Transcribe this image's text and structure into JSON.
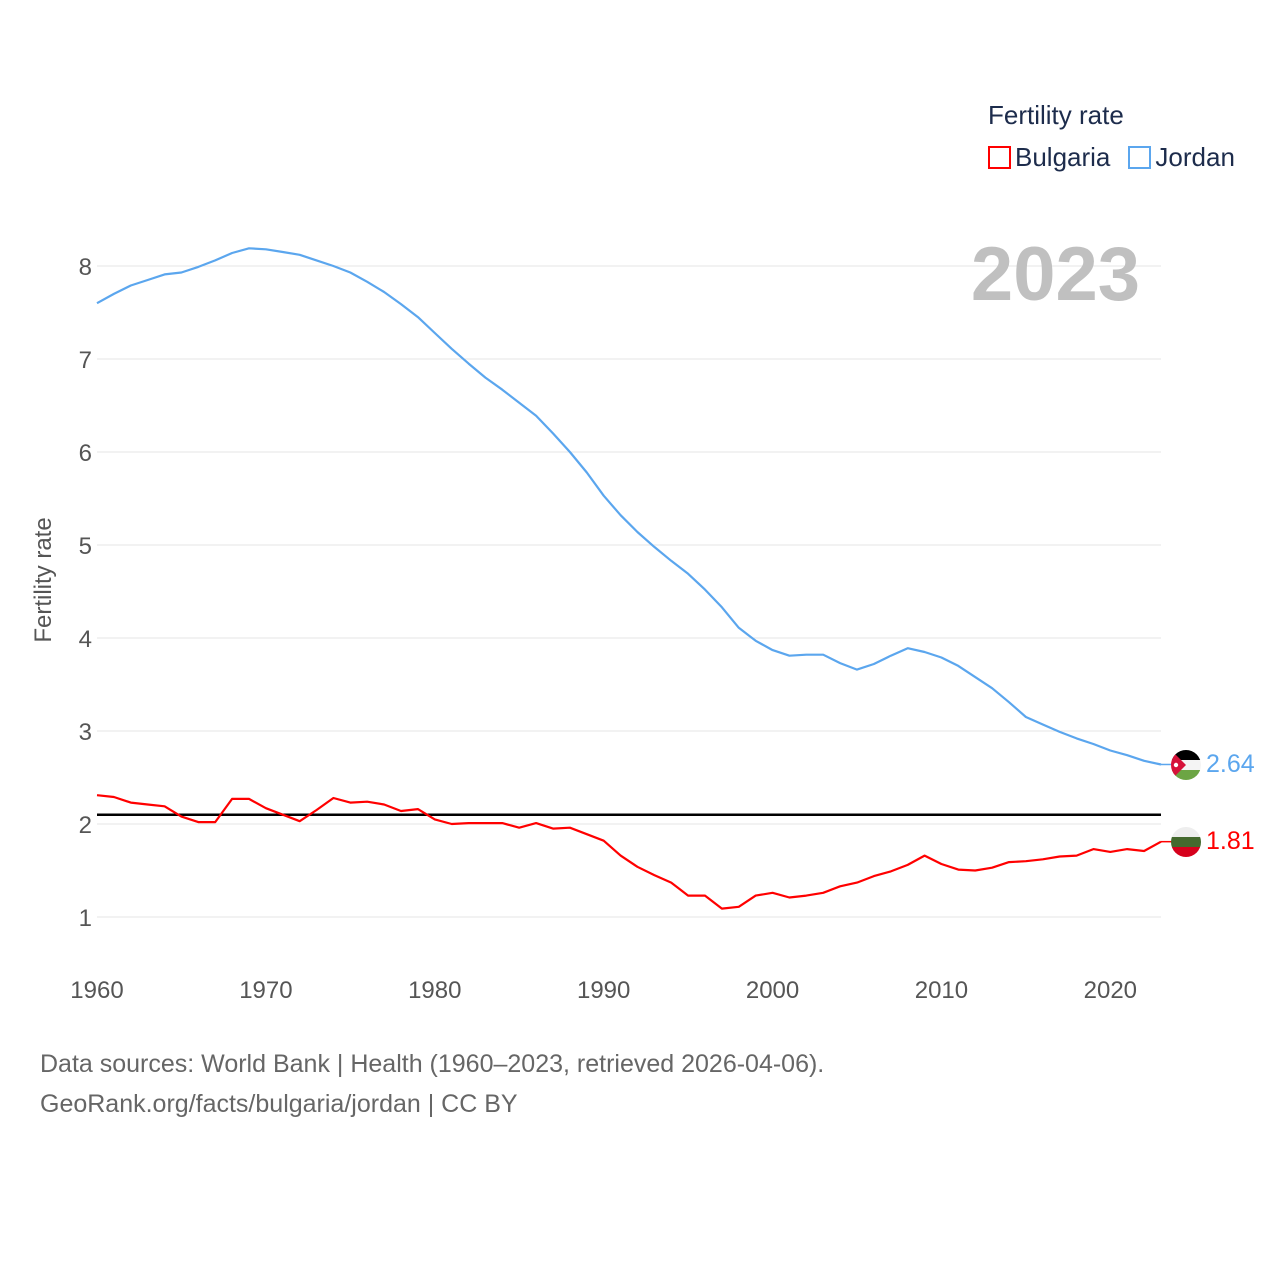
{
  "chart_data": {
    "type": "line",
    "title": "Fertility rate",
    "ylabel": "Fertility rate",
    "xlabel": "",
    "year_display": "2023",
    "xlim": [
      1960,
      2023
    ],
    "ylim": [
      0.5,
      8.4
    ],
    "yticks": [
      1,
      2,
      3,
      4,
      5,
      6,
      7,
      8
    ],
    "xticks": [
      1960,
      1970,
      1980,
      1990,
      2000,
      2010,
      2020
    ],
    "grid": true,
    "legend_position": "top-right",
    "reference_line": {
      "value": 2.1,
      "color": "#000000"
    },
    "x": [
      1960,
      1961,
      1962,
      1963,
      1964,
      1965,
      1966,
      1967,
      1968,
      1969,
      1970,
      1971,
      1972,
      1973,
      1974,
      1975,
      1976,
      1977,
      1978,
      1979,
      1980,
      1981,
      1982,
      1983,
      1984,
      1985,
      1986,
      1987,
      1988,
      1989,
      1990,
      1991,
      1992,
      1993,
      1994,
      1995,
      1996,
      1997,
      1998,
      1999,
      2000,
      2001,
      2002,
      2003,
      2004,
      2005,
      2006,
      2007,
      2008,
      2009,
      2010,
      2011,
      2012,
      2013,
      2014,
      2015,
      2016,
      2017,
      2018,
      2019,
      2020,
      2021,
      2022,
      2023
    ],
    "series": [
      {
        "name": "Bulgaria",
        "color": "#ff0000",
        "end_label": "1.81",
        "values": [
          2.31,
          2.29,
          2.23,
          2.21,
          2.19,
          2.08,
          2.02,
          2.02,
          2.27,
          2.27,
          2.17,
          2.1,
          2.03,
          2.15,
          2.28,
          2.23,
          2.24,
          2.21,
          2.14,
          2.16,
          2.05,
          2.0,
          2.01,
          2.01,
          2.01,
          1.96,
          2.01,
          1.95,
          1.96,
          1.89,
          1.82,
          1.66,
          1.54,
          1.45,
          1.37,
          1.23,
          1.23,
          1.09,
          1.11,
          1.23,
          1.26,
          1.21,
          1.23,
          1.26,
          1.33,
          1.37,
          1.44,
          1.49,
          1.56,
          1.66,
          1.57,
          1.51,
          1.5,
          1.53,
          1.59,
          1.6,
          1.62,
          1.65,
          1.66,
          1.73,
          1.7,
          1.73,
          1.71,
          1.81
        ]
      },
      {
        "name": "Jordan",
        "color": "#5ba6ee",
        "end_label": "2.64",
        "values": [
          7.6,
          7.7,
          7.79,
          7.85,
          7.91,
          7.93,
          7.99,
          8.06,
          8.14,
          8.19,
          8.18,
          8.15,
          8.12,
          8.06,
          8.0,
          7.93,
          7.83,
          7.72,
          7.59,
          7.45,
          7.28,
          7.11,
          6.95,
          6.8,
          6.67,
          6.53,
          6.39,
          6.2,
          6.0,
          5.78,
          5.53,
          5.32,
          5.14,
          4.98,
          4.83,
          4.69,
          4.52,
          4.33,
          4.11,
          3.97,
          3.87,
          3.81,
          3.82,
          3.82,
          3.73,
          3.66,
          3.72,
          3.81,
          3.89,
          3.85,
          3.79,
          3.7,
          3.58,
          3.46,
          3.31,
          3.15,
          3.07,
          2.99,
          2.92,
          2.86,
          2.79,
          2.74,
          2.68,
          2.64
        ]
      }
    ]
  },
  "legend": {
    "title": "Fertility rate",
    "items": [
      "Bulgaria",
      "Jordan"
    ]
  },
  "source": {
    "line1": "Data sources: World Bank | Health (1960–2023, retrieved 2026-04-06).",
    "line2": "GeoRank.org/facts/bulgaria/jordan | CC BY"
  }
}
